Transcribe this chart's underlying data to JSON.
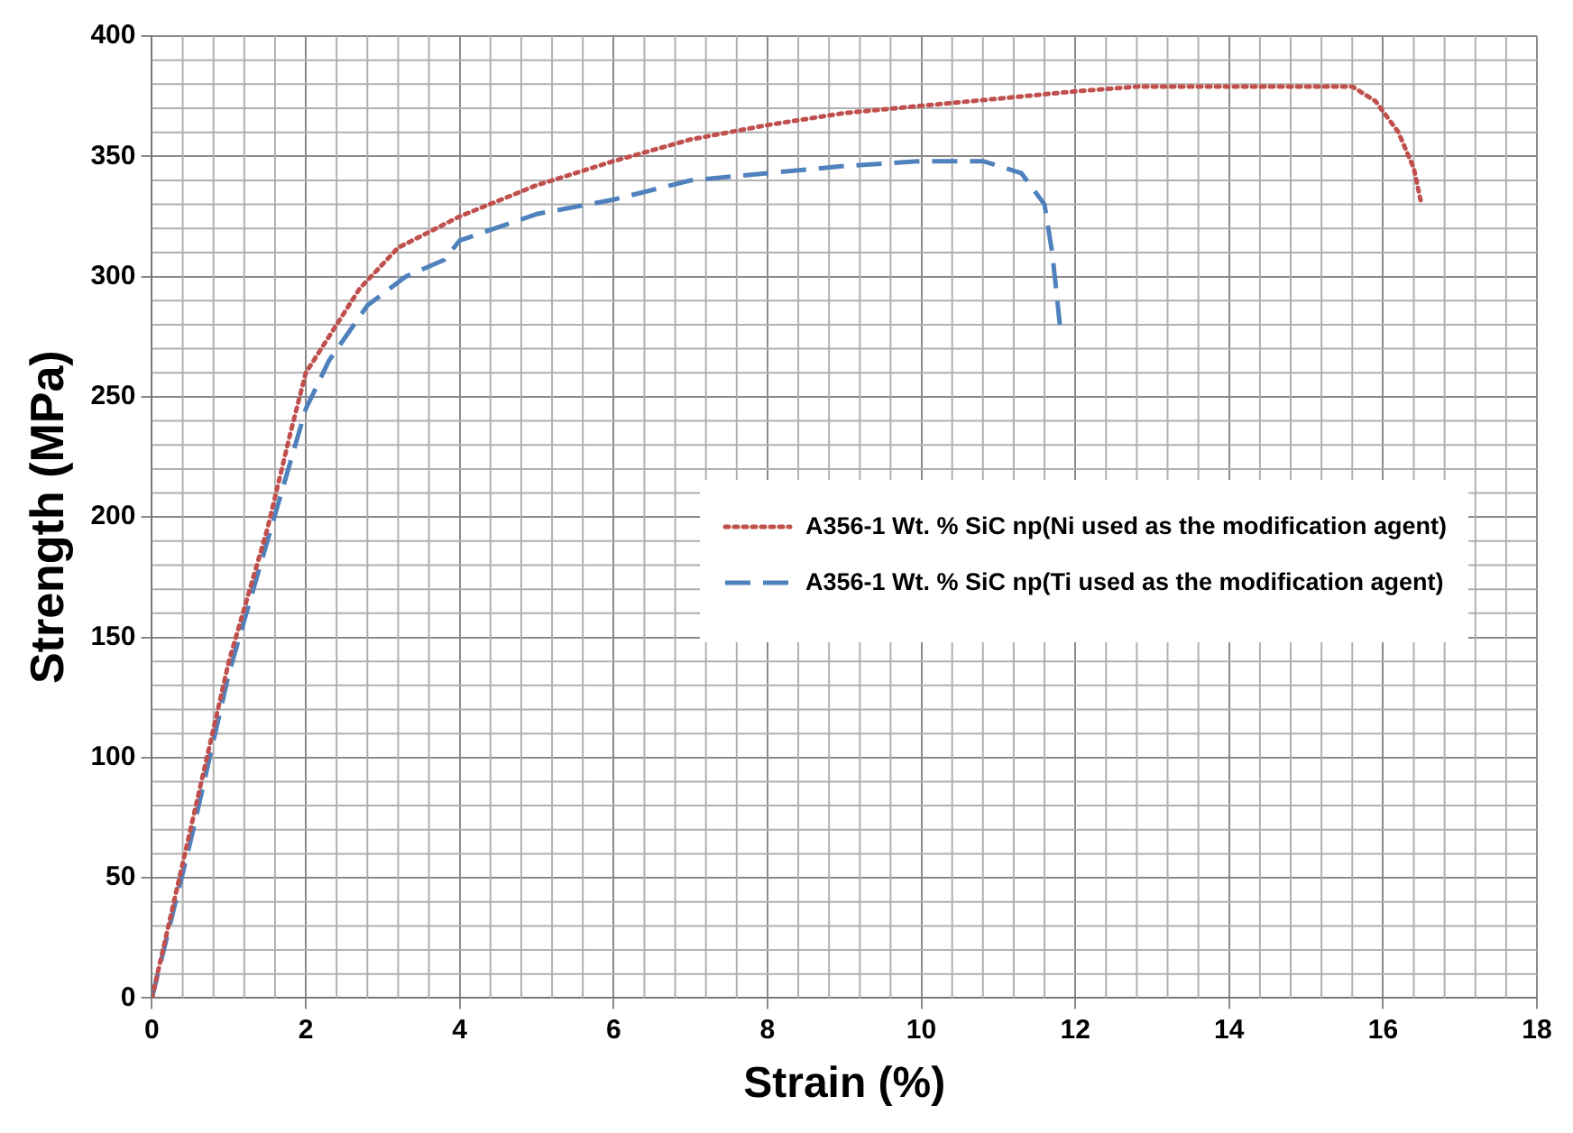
{
  "chart_data": {
    "type": "line",
    "xlabel": "Strain (%)",
    "ylabel": "Strength (MPa)",
    "xlim": [
      0,
      18
    ],
    "xticks": [
      0,
      2,
      4,
      6,
      8,
      10,
      12,
      14,
      16,
      18
    ],
    "ylim": [
      0,
      400
    ],
    "yticks": [
      0,
      50,
      100,
      150,
      200,
      250,
      300,
      350,
      400
    ],
    "grid": true,
    "legend": "right",
    "marker": "none",
    "series": [
      {
        "name": "A356-1 Wt. % SiC np(Ni used as the modification agent)",
        "color": "#c0504d",
        "line_style": "dotted",
        "x": [
          0,
          0.5,
          1,
          1.5,
          1.8,
          2,
          2.3,
          2.7,
          3.2,
          4,
          5,
          6,
          7,
          8,
          9,
          10,
          11,
          12,
          12.8,
          14,
          15.6,
          15.9,
          16.2,
          16.4,
          16.5
        ],
        "values": [
          0,
          70,
          140,
          195,
          235,
          260,
          275,
          295,
          312,
          325,
          338,
          348,
          357,
          363,
          368,
          371,
          374,
          377,
          379,
          379,
          379,
          373,
          360,
          345,
          330
        ]
      },
      {
        "name": "A356-1 Wt. % SiC np(Ti used as the modification agent)",
        "color": "#4f81bd",
        "line_style": "dashed",
        "x": [
          0,
          0.5,
          1,
          1.5,
          2,
          2.3,
          2.8,
          3.3,
          3.8,
          4,
          5,
          6,
          7,
          8,
          9,
          10,
          10.8,
          11.3,
          11.6,
          11.7,
          11.8
        ],
        "values": [
          0,
          65,
          135,
          190,
          245,
          265,
          288,
          300,
          307,
          315,
          326,
          332,
          340,
          343,
          346,
          348,
          348,
          343,
          330,
          310,
          280
        ]
      }
    ]
  }
}
